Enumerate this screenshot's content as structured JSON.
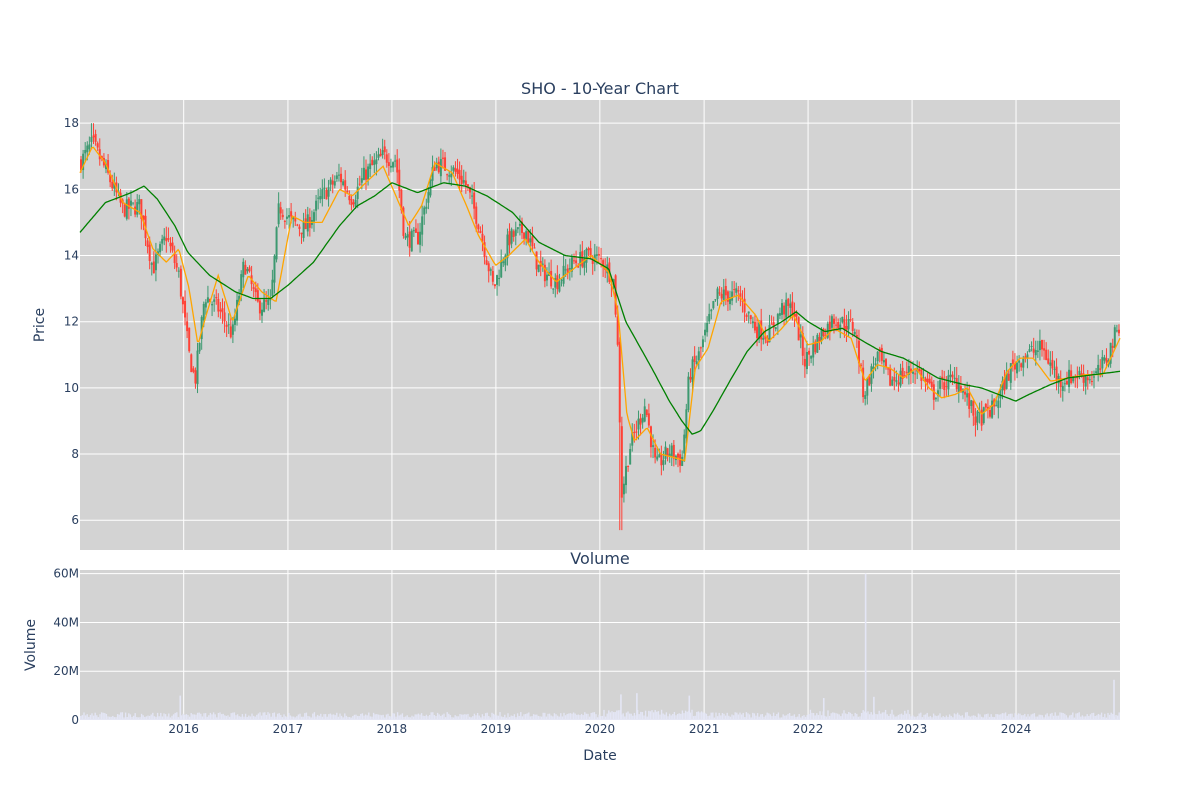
{
  "chart_data": [
    {
      "type": "candlestick",
      "title": "SHO - 10-Year Chart",
      "ylabel": "Price",
      "ylim": [
        5.1,
        18.7
      ],
      "yticks": [
        6,
        8,
        10,
        12,
        14,
        16,
        18
      ],
      "ytick_labels": [
        "6",
        "8",
        "10",
        "12",
        "14",
        "16",
        "18"
      ],
      "grid": true,
      "up_color": "#3d9970",
      "down_color": "#ff4136",
      "price_path": {
        "x": [
          "2015-01-02",
          "2015-02-15",
          "2015-04-01",
          "2015-06-01",
          "2015-08-01",
          "2015-09-15",
          "2015-11-01",
          "2015-12-15",
          "2016-01-20",
          "2016-02-10",
          "2016-03-15",
          "2016-05-01",
          "2016-06-20",
          "2016-08-01",
          "2016-09-15",
          "2016-11-01",
          "2016-12-01",
          "2017-01-15",
          "2017-03-01",
          "2017-05-01",
          "2017-07-01",
          "2017-08-15",
          "2017-10-01",
          "2017-12-01",
          "2018-01-15",
          "2018-02-15",
          "2018-04-01",
          "2018-06-01",
          "2018-08-01",
          "2018-09-15",
          "2018-11-01",
          "2018-12-24",
          "2019-02-15",
          "2019-04-15",
          "2019-06-01",
          "2019-08-01",
          "2019-10-01",
          "2019-12-01",
          "2020-01-15",
          "2020-02-20",
          "2020-03-05",
          "2020-03-18",
          "2020-04-15",
          "2020-06-08",
          "2020-07-15",
          "2020-09-01",
          "2020-10-15",
          "2020-11-10",
          "2020-12-15",
          "2021-02-15",
          "2021-03-15",
          "2021-05-01",
          "2021-07-01",
          "2021-08-15",
          "2021-10-01",
          "2021-11-10",
          "2021-12-20",
          "2022-02-15",
          "2022-04-01",
          "2022-06-15",
          "2022-07-15",
          "2022-09-01",
          "2022-10-15",
          "2022-12-01",
          "2023-01-15",
          "2023-03-15",
          "2023-05-01",
          "2023-06-15",
          "2023-08-15",
          "2023-10-15",
          "2023-12-15",
          "2024-02-01",
          "2024-04-01",
          "2024-06-01",
          "2024-08-01",
          "2024-10-01",
          "2024-11-10",
          "2024-12-31"
        ],
        "y": [
          16.8,
          17.4,
          16.6,
          15.4,
          15.5,
          13.6,
          14.6,
          13.4,
          11.0,
          10.2,
          12.8,
          12.4,
          11.6,
          13.8,
          12.5,
          12.5,
          15.5,
          15.0,
          14.8,
          15.8,
          16.4,
          15.7,
          16.5,
          17.0,
          16.9,
          14.5,
          14.5,
          16.8,
          16.6,
          16.2,
          15.0,
          13.0,
          14.5,
          14.8,
          13.6,
          13.2,
          13.8,
          14.0,
          13.8,
          13.2,
          11.0,
          6.8,
          8.2,
          9.5,
          7.6,
          8.1,
          7.8,
          10.4,
          11.0,
          12.8,
          12.8,
          12.8,
          11.8,
          11.6,
          12.4,
          12.4,
          10.8,
          11.6,
          12.1,
          11.8,
          9.8,
          11.0,
          10.2,
          10.4,
          10.6,
          9.8,
          10.2,
          10.2,
          9.0,
          9.4,
          10.6,
          11.0,
          11.2,
          10.2,
          10.4,
          10.3,
          10.8,
          12.0
        ],
        "low": 5.7,
        "low_date": "2020-03-18",
        "high": 18.0,
        "high_date": "2015-02-15"
      },
      "series": [
        {
          "color": "#ffa500",
          "x": [
            "2015-01-02",
            "2015-02-15",
            "2015-04-01",
            "2015-06-01",
            "2015-08-01",
            "2015-09-15",
            "2015-11-01",
            "2015-12-15",
            "2016-01-20",
            "2016-02-20",
            "2016-03-20",
            "2016-05-01",
            "2016-06-20",
            "2016-08-15",
            "2016-10-01",
            "2016-11-20",
            "2017-01-15",
            "2017-03-01",
            "2017-05-01",
            "2017-07-01",
            "2017-08-15",
            "2017-10-01",
            "2017-12-01",
            "2018-01-15",
            "2018-03-01",
            "2018-04-15",
            "2018-06-01",
            "2018-08-01",
            "2018-09-20",
            "2018-11-01",
            "2018-12-31",
            "2019-02-15",
            "2019-04-15",
            "2019-06-01",
            "2019-08-01",
            "2019-10-01",
            "2019-12-01",
            "2020-02-01",
            "2020-03-05",
            "2020-04-05",
            "2020-05-01",
            "2020-06-15",
            "2020-08-01",
            "2020-09-15",
            "2020-10-25",
            "2020-12-01",
            "2021-01-15",
            "2021-03-01",
            "2021-05-01",
            "2021-07-01",
            "2021-08-15",
            "2021-10-01",
            "2021-11-10",
            "2021-12-31",
            "2022-02-15",
            "2022-04-01",
            "2022-06-01",
            "2022-07-20",
            "2022-09-01",
            "2022-10-15",
            "2022-12-01",
            "2023-01-15",
            "2023-03-01",
            "2023-04-15",
            "2023-06-01",
            "2023-07-15",
            "2023-09-01",
            "2023-10-15",
            "2023-12-01",
            "2024-01-15",
            "2024-03-01",
            "2024-05-01",
            "2024-07-01",
            "2024-09-01",
            "2024-11-01",
            "2024-12-31"
          ],
          "y": [
            16.5,
            17.3,
            16.8,
            15.6,
            15.3,
            14.2,
            13.8,
            14.2,
            13.0,
            11.3,
            12.2,
            13.4,
            12.0,
            13.4,
            12.9,
            12.6,
            15.2,
            15.0,
            15.0,
            16.0,
            15.8,
            16.2,
            16.7,
            15.8,
            14.9,
            15.5,
            16.8,
            16.5,
            15.5,
            14.6,
            13.7,
            14.0,
            14.5,
            13.8,
            13.2,
            13.6,
            14.0,
            13.5,
            12.3,
            9.2,
            8.4,
            8.8,
            8.0,
            7.9,
            7.8,
            10.6,
            11.2,
            12.6,
            12.8,
            12.2,
            11.4,
            11.8,
            12.2,
            11.3,
            11.4,
            11.8,
            11.5,
            10.2,
            10.7,
            10.6,
            10.3,
            10.6,
            10.0,
            9.7,
            9.8,
            10.0,
            9.2,
            9.5,
            10.5,
            10.9,
            10.9,
            10.2,
            10.3,
            10.4,
            10.4,
            11.5
          ]
        },
        {
          "color": "#008000",
          "x": [
            "2015-01-02",
            "2015-04-01",
            "2015-07-01",
            "2015-08-15",
            "2015-10-01",
            "2015-12-01",
            "2016-01-15",
            "2016-04-01",
            "2016-07-01",
            "2016-09-01",
            "2016-11-01",
            "2017-01-01",
            "2017-04-01",
            "2017-07-01",
            "2017-09-01",
            "2017-11-01",
            "2018-01-01",
            "2018-04-01",
            "2018-07-01",
            "2018-09-15",
            "2018-12-01",
            "2019-03-01",
            "2019-06-01",
            "2019-09-01",
            "2019-12-01",
            "2020-02-01",
            "2020-04-01",
            "2020-07-01",
            "2020-09-01",
            "2020-10-15",
            "2020-11-20",
            "2020-12-20",
            "2021-02-01",
            "2021-04-01",
            "2021-06-01",
            "2021-08-01",
            "2021-10-01",
            "2021-11-20",
            "2022-01-01",
            "2022-03-01",
            "2022-05-01",
            "2022-07-15",
            "2022-09-15",
            "2022-12-01",
            "2023-02-01",
            "2023-04-01",
            "2023-07-01",
            "2023-09-01",
            "2023-11-01",
            "2023-12-31",
            "2024-02-15",
            "2024-05-01",
            "2024-07-01",
            "2024-10-01",
            "2024-12-31"
          ],
          "y": [
            14.7,
            15.6,
            15.9,
            16.1,
            15.7,
            14.9,
            14.1,
            13.4,
            12.9,
            12.7,
            12.7,
            13.1,
            13.8,
            14.9,
            15.5,
            15.8,
            16.2,
            15.9,
            16.2,
            16.1,
            15.8,
            15.3,
            14.4,
            14.0,
            13.9,
            13.6,
            12.0,
            10.6,
            9.6,
            9.0,
            8.6,
            8.7,
            9.3,
            10.2,
            11.1,
            11.7,
            12.0,
            12.3,
            12.0,
            11.7,
            11.8,
            11.4,
            11.1,
            10.9,
            10.6,
            10.3,
            10.1,
            10.0,
            9.8,
            9.6,
            9.8,
            10.1,
            10.3,
            10.4,
            10.5
          ]
        }
      ],
      "xlim": [
        "2015-01-02",
        "2024-12-31"
      ]
    },
    {
      "type": "bar",
      "title": "Volume",
      "ylabel": "Volume",
      "xlabel": "Date",
      "ylim": [
        0,
        61500000
      ],
      "yticks": [
        0,
        20000000,
        40000000,
        60000000
      ],
      "ytick_labels": [
        "0",
        "20M",
        "40M",
        "60M"
      ],
      "xtick_labels": [
        "2016",
        "2017",
        "2018",
        "2019",
        "2020",
        "2021",
        "2022",
        "2023",
        "2024"
      ],
      "xticks": [
        "2016-01-01",
        "2017-01-01",
        "2018-01-01",
        "2019-01-01",
        "2020-01-01",
        "2021-01-01",
        "2022-01-01",
        "2023-01-01",
        "2024-01-01"
      ],
      "bar_color": "#e4e6f5",
      "baseline_volume": 2500000,
      "spikes": [
        {
          "x": "2015-12-20",
          "value": 10000000
        },
        {
          "x": "2020-03-15",
          "value": 10500000
        },
        {
          "x": "2020-05-10",
          "value": 11000000
        },
        {
          "x": "2020-11-10",
          "value": 10000000
        },
        {
          "x": "2022-02-25",
          "value": 9000000
        },
        {
          "x": "2022-07-22",
          "value": 60000000
        },
        {
          "x": "2022-08-20",
          "value": 9500000
        },
        {
          "x": "2024-12-10",
          "value": 16500000
        }
      ],
      "grid": true
    }
  ]
}
